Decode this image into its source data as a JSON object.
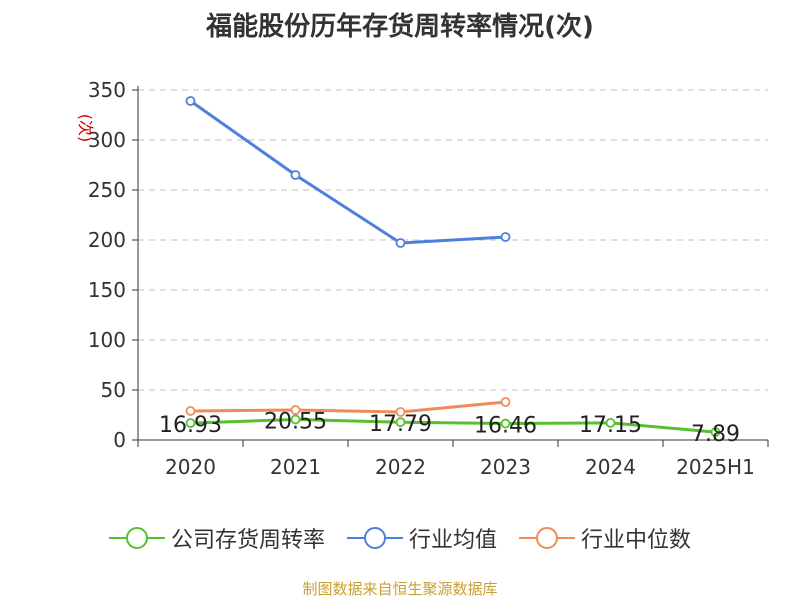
{
  "title": "福能股份历年存货周转率情况(次)",
  "source": "制图数据来自恒生聚源数据库",
  "colors": {
    "company": "#58c02e",
    "industry_avg": "#4f7fdc",
    "industry_median": "#f08c5a",
    "axis": "#333333",
    "grid": "#cccccc",
    "ylabel": "#cc0000"
  },
  "chart_data": {
    "type": "line",
    "title": "福能股份历年存货周转率情况(次)",
    "ylabel": "(次)",
    "xlabel": "",
    "categories": [
      "2020",
      "2021",
      "2022",
      "2023",
      "2024",
      "2025H1"
    ],
    "ylim": [
      0,
      350
    ],
    "yticks": [
      0,
      50,
      100,
      150,
      200,
      250,
      300,
      350
    ],
    "grid": true,
    "legend_position": "bottom",
    "series": [
      {
        "name": "公司存货周转率",
        "color": "#58c02e",
        "values": [
          16.93,
          20.55,
          17.79,
          16.46,
          17.15,
          7.89
        ],
        "data_labels": [
          "16.93",
          "20.55",
          "17.79",
          "16.46",
          "17.15",
          "7.89"
        ]
      },
      {
        "name": "行业均值",
        "color": "#4f7fdc",
        "values": [
          339,
          265,
          197,
          203,
          null,
          null
        ]
      },
      {
        "name": "行业中位数",
        "color": "#f08c5a",
        "values": [
          29,
          30,
          28,
          38,
          null,
          null
        ]
      }
    ]
  }
}
